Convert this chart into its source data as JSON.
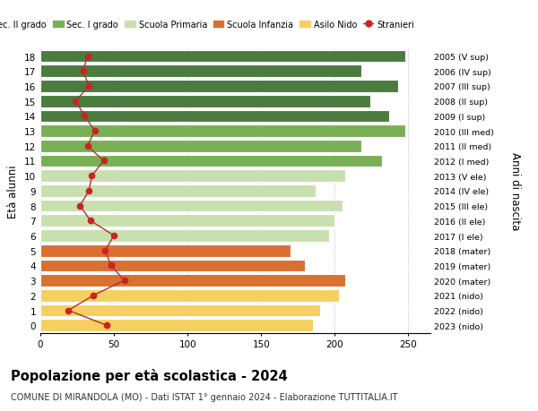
{
  "ages": [
    18,
    17,
    16,
    15,
    14,
    13,
    12,
    11,
    10,
    9,
    8,
    7,
    6,
    5,
    4,
    3,
    2,
    1,
    0
  ],
  "years": [
    "2005 (V sup)",
    "2006 (IV sup)",
    "2007 (III sup)",
    "2008 (II sup)",
    "2009 (I sup)",
    "2010 (III med)",
    "2011 (II med)",
    "2012 (I med)",
    "2013 (V ele)",
    "2014 (IV ele)",
    "2015 (III ele)",
    "2016 (II ele)",
    "2017 (I ele)",
    "2018 (mater)",
    "2019 (mater)",
    "2020 (mater)",
    "2021 (nido)",
    "2022 (nido)",
    "2023 (nido)"
  ],
  "bar_values": [
    248,
    218,
    243,
    224,
    237,
    248,
    218,
    232,
    207,
    187,
    205,
    200,
    196,
    170,
    180,
    207,
    203,
    190,
    185
  ],
  "bar_colors": [
    "#4a7c40",
    "#4a7c40",
    "#4a7c40",
    "#4a7c40",
    "#4a7c40",
    "#7ab055",
    "#7ab055",
    "#7ab055",
    "#c8e0b0",
    "#c8e0b0",
    "#c8e0b0",
    "#c8e0b0",
    "#c8e0b0",
    "#d97030",
    "#d97030",
    "#d97030",
    "#f5d060",
    "#f5d060",
    "#f5d060"
  ],
  "stranieri_values": [
    32,
    29,
    33,
    24,
    30,
    37,
    32,
    43,
    35,
    33,
    27,
    34,
    50,
    44,
    48,
    57,
    36,
    19,
    45
  ],
  "legend_labels": [
    "Sec. II grado",
    "Sec. I grado",
    "Scuola Primaria",
    "Scuola Infanzia",
    "Asilo Nido",
    "Stranieri"
  ],
  "legend_colors": [
    "#4a7c40",
    "#7ab055",
    "#c8e0b0",
    "#d97030",
    "#f5d060",
    "#cc2222"
  ],
  "ylabel_left": "Età alunni",
  "ylabel_right": "Anni di nascita",
  "xlim": [
    0,
    265
  ],
  "xticks": [
    0,
    50,
    100,
    150,
    200,
    250
  ],
  "title": "Popolazione per età scolastica - 2024",
  "subtitle": "COMUNE DI MIRANDOLA (MO) - Dati ISTAT 1° gennaio 2024 - Elaborazione TUTTITALIA.IT",
  "bg_color": "#ffffff",
  "bar_height": 0.82,
  "stranieri_line_color": "#b03030",
  "stranieri_marker_color": "#cc2222"
}
